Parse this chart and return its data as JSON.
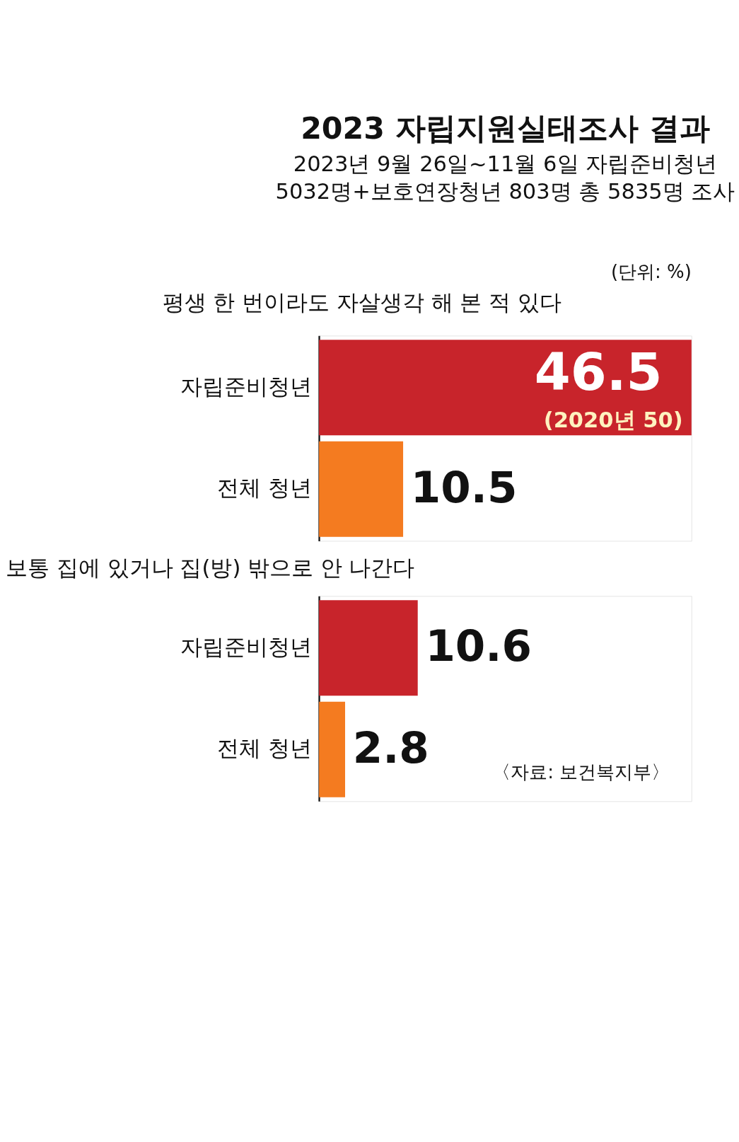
{
  "chart_data": [
    {
      "type": "bar",
      "orientation": "horizontal",
      "title": "2023 자립지원실태조사 결과",
      "subtitle": "2023년 9월 26일~11월 6일 자립준비청년\n5032명+보호연장청년 803명 총 5835명 조사",
      "categories": [
        "자립준비청년",
        "전체 청년"
      ],
      "values": [
        46.5,
        10.5
      ],
      "colors": [
        "#c8242b",
        "#f47b20"
      ],
      "xlim": [
        0,
        46.5
      ],
      "tick_labels": "y",
      "data_labels": true,
      "annotations": [
        "(단위: %)",
        "평생 한 번이라도 자살생각 해 본 적 있다",
        "(2020년 50)"
      ]
    },
    {
      "type": "bar",
      "orientation": "horizontal",
      "title": "보통 집에 있거나 집(방) 밖으로 안 나간다",
      "categories": [
        "자립준비청년",
        "전체 청년"
      ],
      "values": [
        10.6,
        2.8
      ],
      "colors": [
        "#c8242b",
        "#f47b20"
      ],
      "xlim": [
        0,
        40
      ],
      "tick_labels": "y",
      "data_labels": true,
      "annotations": [
        "〈자료: 보건복지부〉"
      ]
    }
  ]
}
